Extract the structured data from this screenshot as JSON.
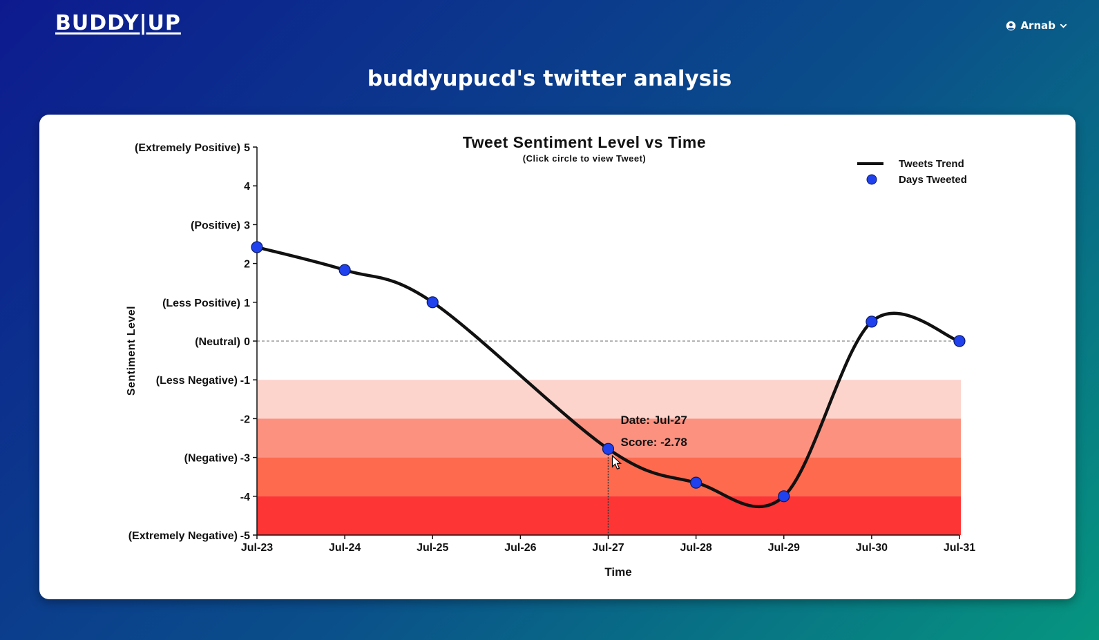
{
  "header": {
    "logo": "BUDDY|UP",
    "user_name": "Arnab",
    "user_icon": "user-circle-icon",
    "dropdown_icon": "chevron-down-icon"
  },
  "page": {
    "title": "buddyupucd's twitter analysis"
  },
  "chart_data": {
    "type": "line",
    "title": "Tweet Sentiment Level vs Time",
    "subtitle": "(Click circle to view Tweet)",
    "xlabel": "Time",
    "ylabel": "Sentiment Level",
    "categories": [
      "Jul-23",
      "Jul-24",
      "Jul-25",
      "Jul-26",
      "Jul-27",
      "Jul-28",
      "Jul-29",
      "Jul-30",
      "Jul-31"
    ],
    "series": [
      {
        "name": "Tweets Trend",
        "x": [
          "Jul-23",
          "Jul-24",
          "Jul-25",
          "Jul-27",
          "Jul-28",
          "Jul-29",
          "Jul-30",
          "Jul-31"
        ],
        "values": [
          2.42,
          1.83,
          1.0,
          -2.78,
          -3.65,
          -4.0,
          0.5,
          0.0
        ]
      }
    ],
    "legend": [
      {
        "label": "Tweets Trend",
        "symbol": "line"
      },
      {
        "label": "Days Tweeted",
        "symbol": "circle"
      }
    ],
    "legend_position": "top-right",
    "ylim": [
      -5,
      5
    ],
    "yticks": [
      {
        "value": 5,
        "label": "(Extremely Positive)"
      },
      {
        "value": 4,
        "label": ""
      },
      {
        "value": 3,
        "label": "(Positive)"
      },
      {
        "value": 2,
        "label": ""
      },
      {
        "value": 1,
        "label": "(Less Positive)"
      },
      {
        "value": 0,
        "label": "(Neutral)"
      },
      {
        "value": -1,
        "label": "(Less Negative)"
      },
      {
        "value": -2,
        "label": ""
      },
      {
        "value": -3,
        "label": "(Negative)"
      },
      {
        "value": -4,
        "label": ""
      },
      {
        "value": -5,
        "label": "(Extremely Negative)"
      }
    ],
    "bands": [
      {
        "from": -1,
        "to": -2,
        "color": "#fdd4cc"
      },
      {
        "from": -2,
        "to": -3,
        "color": "#fc9180"
      },
      {
        "from": -3,
        "to": -4,
        "color": "#fd6a4e"
      },
      {
        "from": -4,
        "to": -5,
        "color": "#fe3535"
      }
    ],
    "reference_line": {
      "value": 0,
      "style": "dashed"
    },
    "colors": {
      "line": "#111111",
      "point": "#2041ee",
      "point_stroke": "#0a1a66"
    },
    "tooltip": {
      "x": "Jul-27",
      "value": -2.78,
      "date_text": "Date: Jul-27",
      "score_text": "Score: -2.78"
    }
  }
}
